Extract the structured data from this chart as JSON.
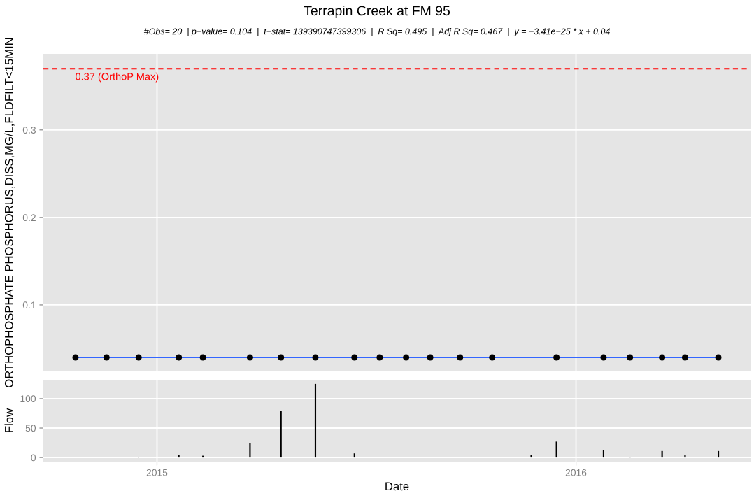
{
  "chart_data": [
    {
      "type": "scatter",
      "title": "Terrapin Creek at FM 95",
      "subtitle": "#Obs= 20  | p−value= 0.104  |  t−stat= 139390747399306  |  R Sq= 0.495  |  Adj R Sq= 0.467  |  y = −3.41e−25 * x + 0.04",
      "ylabel": "ORTHOPHOSPHATE PHOSPHORUS,DISS,MG/L,FLDFILT<15MIN",
      "x": [
        "2014-10-22",
        "2014-11-18",
        "2014-12-16",
        "2015-01-20",
        "2015-02-10",
        "2015-03-23",
        "2015-04-19",
        "2015-05-19",
        "2015-06-22",
        "2015-07-14",
        "2015-08-06",
        "2015-08-27",
        "2015-09-22",
        "2015-10-20",
        "2015-12-15",
        "2016-01-25",
        "2016-02-17",
        "2016-03-16",
        "2016-04-05",
        "2016-05-04"
      ],
      "series": [
        {
          "type": "line",
          "color": "#3366ff",
          "x": [
            "2014-10-22",
            "2016-05-04"
          ],
          "values": [
            0.04,
            0.04
          ]
        },
        {
          "type": "scatter",
          "color": "#000000",
          "marker": "circle",
          "values": [
            0.04,
            0.04,
            0.04,
            0.04,
            0.04,
            0.04,
            0.04,
            0.04,
            0.04,
            0.04,
            0.04,
            0.04,
            0.04,
            0.04,
            0.04,
            0.04,
            0.04,
            0.04,
            0.04,
            0.04
          ]
        }
      ],
      "xlim": [
        "2014-09-24",
        "2016-06-01"
      ],
      "xticks": [
        {
          "value": "2015-01-01",
          "label": null
        },
        {
          "value": "2016-01-01",
          "label": null
        }
      ],
      "ylim": [
        0.024,
        0.387
      ],
      "yticks": [
        0.1,
        0.2,
        0.3
      ],
      "ref_lines": [
        {
          "axis": "y",
          "value": 0.37,
          "label": "0.37 (OrthoP Max)",
          "color": "#ff0000",
          "line_style": "dashed"
        }
      ],
      "grid": true,
      "tick_labels": "y"
    },
    {
      "type": "bar",
      "xlabel": "Date",
      "ylabel": "Flow",
      "color": "#000000",
      "x": [
        "2014-10-22",
        "2014-11-18",
        "2014-12-16",
        "2015-01-20",
        "2015-02-10",
        "2015-03-23",
        "2015-04-19",
        "2015-05-19",
        "2015-06-22",
        "2015-07-14",
        "2015-08-06",
        "2015-08-27",
        "2015-09-22",
        "2015-10-20",
        "2015-11-23",
        "2015-12-15",
        "2016-01-25",
        "2016-02-17",
        "2016-03-16",
        "2016-04-05",
        "2016-05-04"
      ],
      "values": [
        0,
        0,
        1,
        4,
        3,
        24,
        79,
        125,
        7,
        0,
        0,
        0,
        0,
        0,
        4,
        27,
        12,
        1,
        11,
        4,
        11
      ],
      "xlim": [
        "2014-09-24",
        "2016-06-01"
      ],
      "xticks": [
        {
          "value": "2015-01-01",
          "label": "2015"
        },
        {
          "value": "2016-01-01",
          "label": "2016"
        }
      ],
      "ylim": [
        -7,
        132
      ],
      "yticks": [
        0,
        50,
        100
      ],
      "grid": true
    }
  ]
}
